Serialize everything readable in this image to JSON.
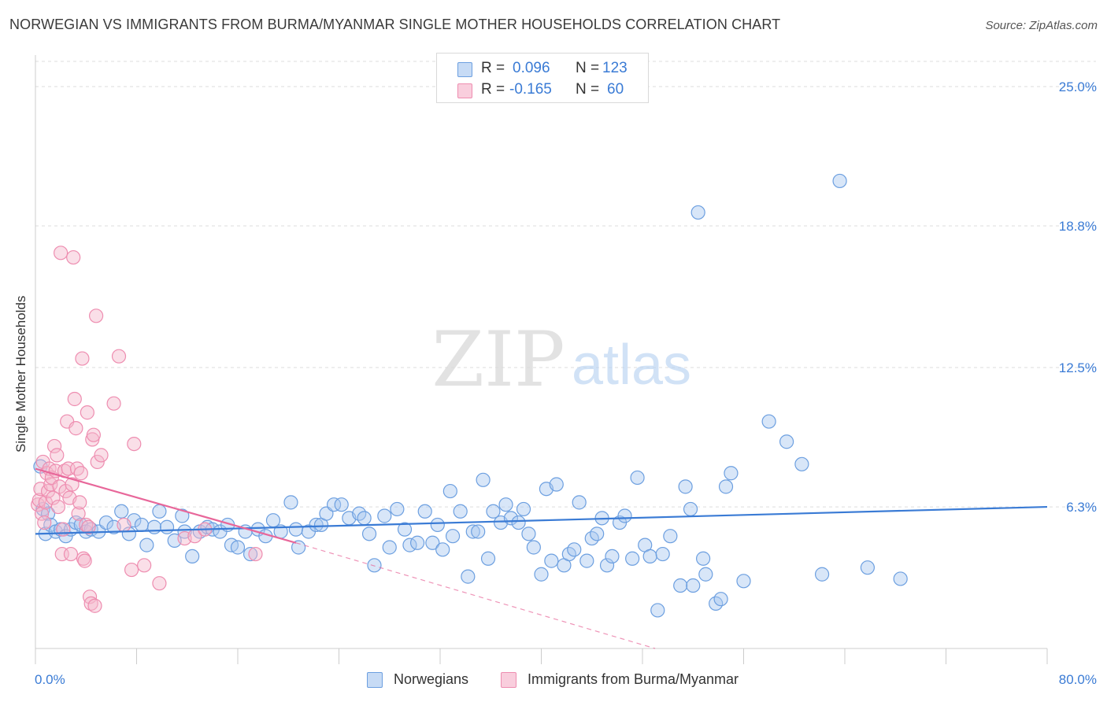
{
  "title": "NORWEGIAN VS IMMIGRANTS FROM BURMA/MYANMAR SINGLE MOTHER HOUSEHOLDS CORRELATION CHART",
  "source": "Source: ZipAtlas.com",
  "watermark": {
    "zip": "ZIP",
    "atlas": "atlas"
  },
  "colors": {
    "blue": "#3a7bd5",
    "blue_fill": "#a9c8f0",
    "blue_stroke": "#6c9fe0",
    "pink": "#e8679a",
    "pink_fill": "#f5b8cd",
    "pink_stroke": "#ee8db0",
    "grid": "#dddddd",
    "axis": "#cccccc",
    "tick_text": "#3a7bd5"
  },
  "legend": {
    "rows": [
      {
        "r_label": "R =",
        "r_value": "0.096",
        "n_label": "N =",
        "n_value": "123"
      },
      {
        "r_label": "R =",
        "r_value": "-0.165",
        "n_label": "N =",
        "n_value": "60"
      }
    ]
  },
  "chart_data": {
    "type": "scatter",
    "title": "NORWEGIAN VS IMMIGRANTS FROM BURMA/MYANMAR SINGLE MOTHER HOUSEHOLDS CORRELATION CHART",
    "xlabel": "",
    "ylabel": "Single Mother Households",
    "xlim": [
      0,
      80
    ],
    "ylim": [
      0,
      26.4
    ],
    "x_tick_labels": [
      "0.0%",
      "80.0%"
    ],
    "y_ticks": [
      6.3,
      12.5,
      18.8,
      25.0
    ],
    "y_tick_labels": [
      "6.3%",
      "12.5%",
      "18.8%",
      "25.0%"
    ],
    "grid": true,
    "legend_position": "top-center",
    "series": [
      {
        "name": "Norwegians",
        "color": "#3a7bd5",
        "trend": {
          "x": [
            0,
            80
          ],
          "y": [
            5.1,
            6.3
          ]
        },
        "points": [
          [
            0.4,
            8.1
          ],
          [
            0.6,
            6.2
          ],
          [
            0.8,
            5.1
          ],
          [
            1.0,
            6.0
          ],
          [
            1.2,
            5.5
          ],
          [
            1.6,
            5.2
          ],
          [
            2.0,
            5.3
          ],
          [
            2.4,
            5.0
          ],
          [
            2.8,
            5.3
          ],
          [
            3.2,
            5.6
          ],
          [
            3.6,
            5.5
          ],
          [
            4.0,
            5.2
          ],
          [
            4.4,
            5.3
          ],
          [
            5.0,
            5.2
          ],
          [
            5.6,
            5.6
          ],
          [
            6.2,
            5.4
          ],
          [
            6.8,
            6.1
          ],
          [
            7.4,
            5.1
          ],
          [
            7.8,
            5.7
          ],
          [
            8.4,
            5.5
          ],
          [
            8.8,
            4.6
          ],
          [
            9.4,
            5.4
          ],
          [
            9.8,
            6.1
          ],
          [
            10.4,
            5.4
          ],
          [
            11.0,
            4.8
          ],
          [
            11.6,
            5.9
          ],
          [
            11.8,
            5.2
          ],
          [
            12.4,
            4.1
          ],
          [
            13.0,
            5.2
          ],
          [
            13.6,
            5.4
          ],
          [
            14.0,
            5.3
          ],
          [
            14.6,
            5.2
          ],
          [
            15.2,
            5.5
          ],
          [
            15.5,
            4.6
          ],
          [
            16.0,
            4.5
          ],
          [
            16.6,
            5.2
          ],
          [
            17.0,
            4.2
          ],
          [
            17.6,
            5.3
          ],
          [
            18.2,
            5.0
          ],
          [
            18.8,
            5.7
          ],
          [
            19.4,
            5.2
          ],
          [
            20.2,
            6.5
          ],
          [
            20.6,
            5.3
          ],
          [
            20.8,
            4.5
          ],
          [
            21.6,
            5.2
          ],
          [
            22.2,
            5.5
          ],
          [
            22.6,
            5.5
          ],
          [
            23.0,
            6.0
          ],
          [
            23.6,
            6.4
          ],
          [
            24.2,
            6.4
          ],
          [
            24.8,
            5.8
          ],
          [
            25.6,
            6.0
          ],
          [
            26.0,
            5.8
          ],
          [
            26.4,
            5.1
          ],
          [
            26.8,
            3.7
          ],
          [
            27.6,
            5.9
          ],
          [
            28.0,
            4.5
          ],
          [
            28.6,
            6.2
          ],
          [
            29.2,
            5.3
          ],
          [
            29.6,
            4.6
          ],
          [
            30.2,
            4.7
          ],
          [
            30.8,
            6.1
          ],
          [
            31.4,
            4.7
          ],
          [
            31.8,
            5.5
          ],
          [
            32.2,
            4.4
          ],
          [
            32.8,
            7.0
          ],
          [
            33.0,
            5.0
          ],
          [
            33.6,
            6.1
          ],
          [
            34.2,
            3.2
          ],
          [
            34.6,
            5.2
          ],
          [
            35.0,
            5.2
          ],
          [
            35.4,
            7.5
          ],
          [
            35.8,
            4.0
          ],
          [
            36.2,
            6.1
          ],
          [
            36.8,
            5.6
          ],
          [
            37.2,
            6.4
          ],
          [
            37.6,
            5.8
          ],
          [
            38.2,
            5.6
          ],
          [
            38.6,
            6.2
          ],
          [
            39.0,
            5.1
          ],
          [
            39.4,
            4.5
          ],
          [
            40.0,
            3.3
          ],
          [
            40.4,
            7.1
          ],
          [
            40.8,
            3.9
          ],
          [
            41.2,
            7.3
          ],
          [
            41.8,
            3.7
          ],
          [
            42.2,
            4.2
          ],
          [
            42.6,
            4.4
          ],
          [
            43.0,
            6.5
          ],
          [
            43.6,
            3.9
          ],
          [
            44.0,
            4.9
          ],
          [
            44.4,
            5.1
          ],
          [
            44.8,
            5.8
          ],
          [
            45.2,
            3.7
          ],
          [
            45.6,
            4.1
          ],
          [
            46.2,
            5.6
          ],
          [
            46.6,
            5.9
          ],
          [
            47.2,
            4.0
          ],
          [
            47.6,
            7.6
          ],
          [
            48.2,
            4.6
          ],
          [
            48.6,
            4.1
          ],
          [
            49.2,
            1.7
          ],
          [
            49.6,
            4.2
          ],
          [
            50.2,
            5.0
          ],
          [
            51.0,
            2.8
          ],
          [
            51.4,
            7.2
          ],
          [
            51.8,
            6.2
          ],
          [
            52.0,
            2.8
          ],
          [
            52.8,
            4.0
          ],
          [
            53.0,
            3.3
          ],
          [
            53.8,
            2.0
          ],
          [
            54.2,
            2.2
          ],
          [
            54.6,
            7.2
          ],
          [
            55.0,
            7.8
          ],
          [
            56.0,
            3.0
          ],
          [
            58.0,
            10.1
          ],
          [
            59.4,
            9.2
          ],
          [
            60.6,
            8.2
          ],
          [
            62.2,
            3.3
          ],
          [
            65.8,
            3.6
          ],
          [
            68.4,
            3.1
          ],
          [
            52.4,
            19.4
          ],
          [
            63.6,
            20.8
          ]
        ]
      },
      {
        "name": "Immigrants from Burma/Myanmar",
        "color": "#e8679a",
        "trend": {
          "x": [
            0,
            20.6
          ],
          "y": [
            8.0,
            4.7
          ]
        },
        "trend_extension": {
          "x": [
            20.6,
            49.0
          ],
          "y": [
            4.7,
            0.0
          ]
        },
        "points": [
          [
            0.2,
            6.4
          ],
          [
            0.3,
            6.6
          ],
          [
            0.4,
            7.1
          ],
          [
            0.5,
            6.0
          ],
          [
            0.6,
            8.3
          ],
          [
            0.7,
            5.6
          ],
          [
            0.8,
            6.5
          ],
          [
            0.9,
            7.8
          ],
          [
            1.0,
            7.0
          ],
          [
            1.1,
            8.0
          ],
          [
            1.2,
            7.3
          ],
          [
            1.3,
            7.6
          ],
          [
            1.4,
            6.7
          ],
          [
            1.5,
            9.0
          ],
          [
            1.6,
            7.9
          ],
          [
            1.7,
            8.6
          ],
          [
            1.8,
            6.3
          ],
          [
            1.9,
            7.2
          ],
          [
            2.0,
            17.6
          ],
          [
            2.1,
            4.2
          ],
          [
            2.2,
            5.3
          ],
          [
            2.3,
            7.9
          ],
          [
            2.4,
            7.0
          ],
          [
            2.5,
            10.1
          ],
          [
            2.6,
            8.0
          ],
          [
            2.7,
            6.7
          ],
          [
            2.8,
            4.2
          ],
          [
            2.9,
            7.3
          ],
          [
            3.0,
            17.4
          ],
          [
            3.1,
            11.1
          ],
          [
            3.2,
            9.8
          ],
          [
            3.3,
            8.0
          ],
          [
            3.4,
            6.0
          ],
          [
            3.5,
            6.5
          ],
          [
            3.6,
            7.8
          ],
          [
            3.7,
            12.9
          ],
          [
            3.8,
            4.0
          ],
          [
            3.9,
            3.9
          ],
          [
            4.0,
            5.5
          ],
          [
            4.1,
            10.5
          ],
          [
            4.2,
            5.4
          ],
          [
            4.3,
            2.3
          ],
          [
            4.4,
            2.0
          ],
          [
            4.5,
            9.3
          ],
          [
            4.6,
            9.5
          ],
          [
            4.7,
            1.9
          ],
          [
            4.8,
            14.8
          ],
          [
            4.9,
            8.3
          ],
          [
            5.2,
            8.6
          ],
          [
            6.2,
            10.9
          ],
          [
            6.6,
            13.0
          ],
          [
            7.0,
            5.5
          ],
          [
            7.8,
            9.1
          ],
          [
            7.6,
            3.5
          ],
          [
            8.6,
            3.7
          ],
          [
            9.8,
            2.9
          ],
          [
            11.8,
            4.9
          ],
          [
            12.6,
            5.0
          ],
          [
            13.4,
            5.3
          ],
          [
            17.4,
            4.2
          ]
        ]
      }
    ]
  },
  "bottom_legend": [
    {
      "label": "Norwegians"
    },
    {
      "label": "Immigrants from Burma/Myanmar"
    }
  ]
}
